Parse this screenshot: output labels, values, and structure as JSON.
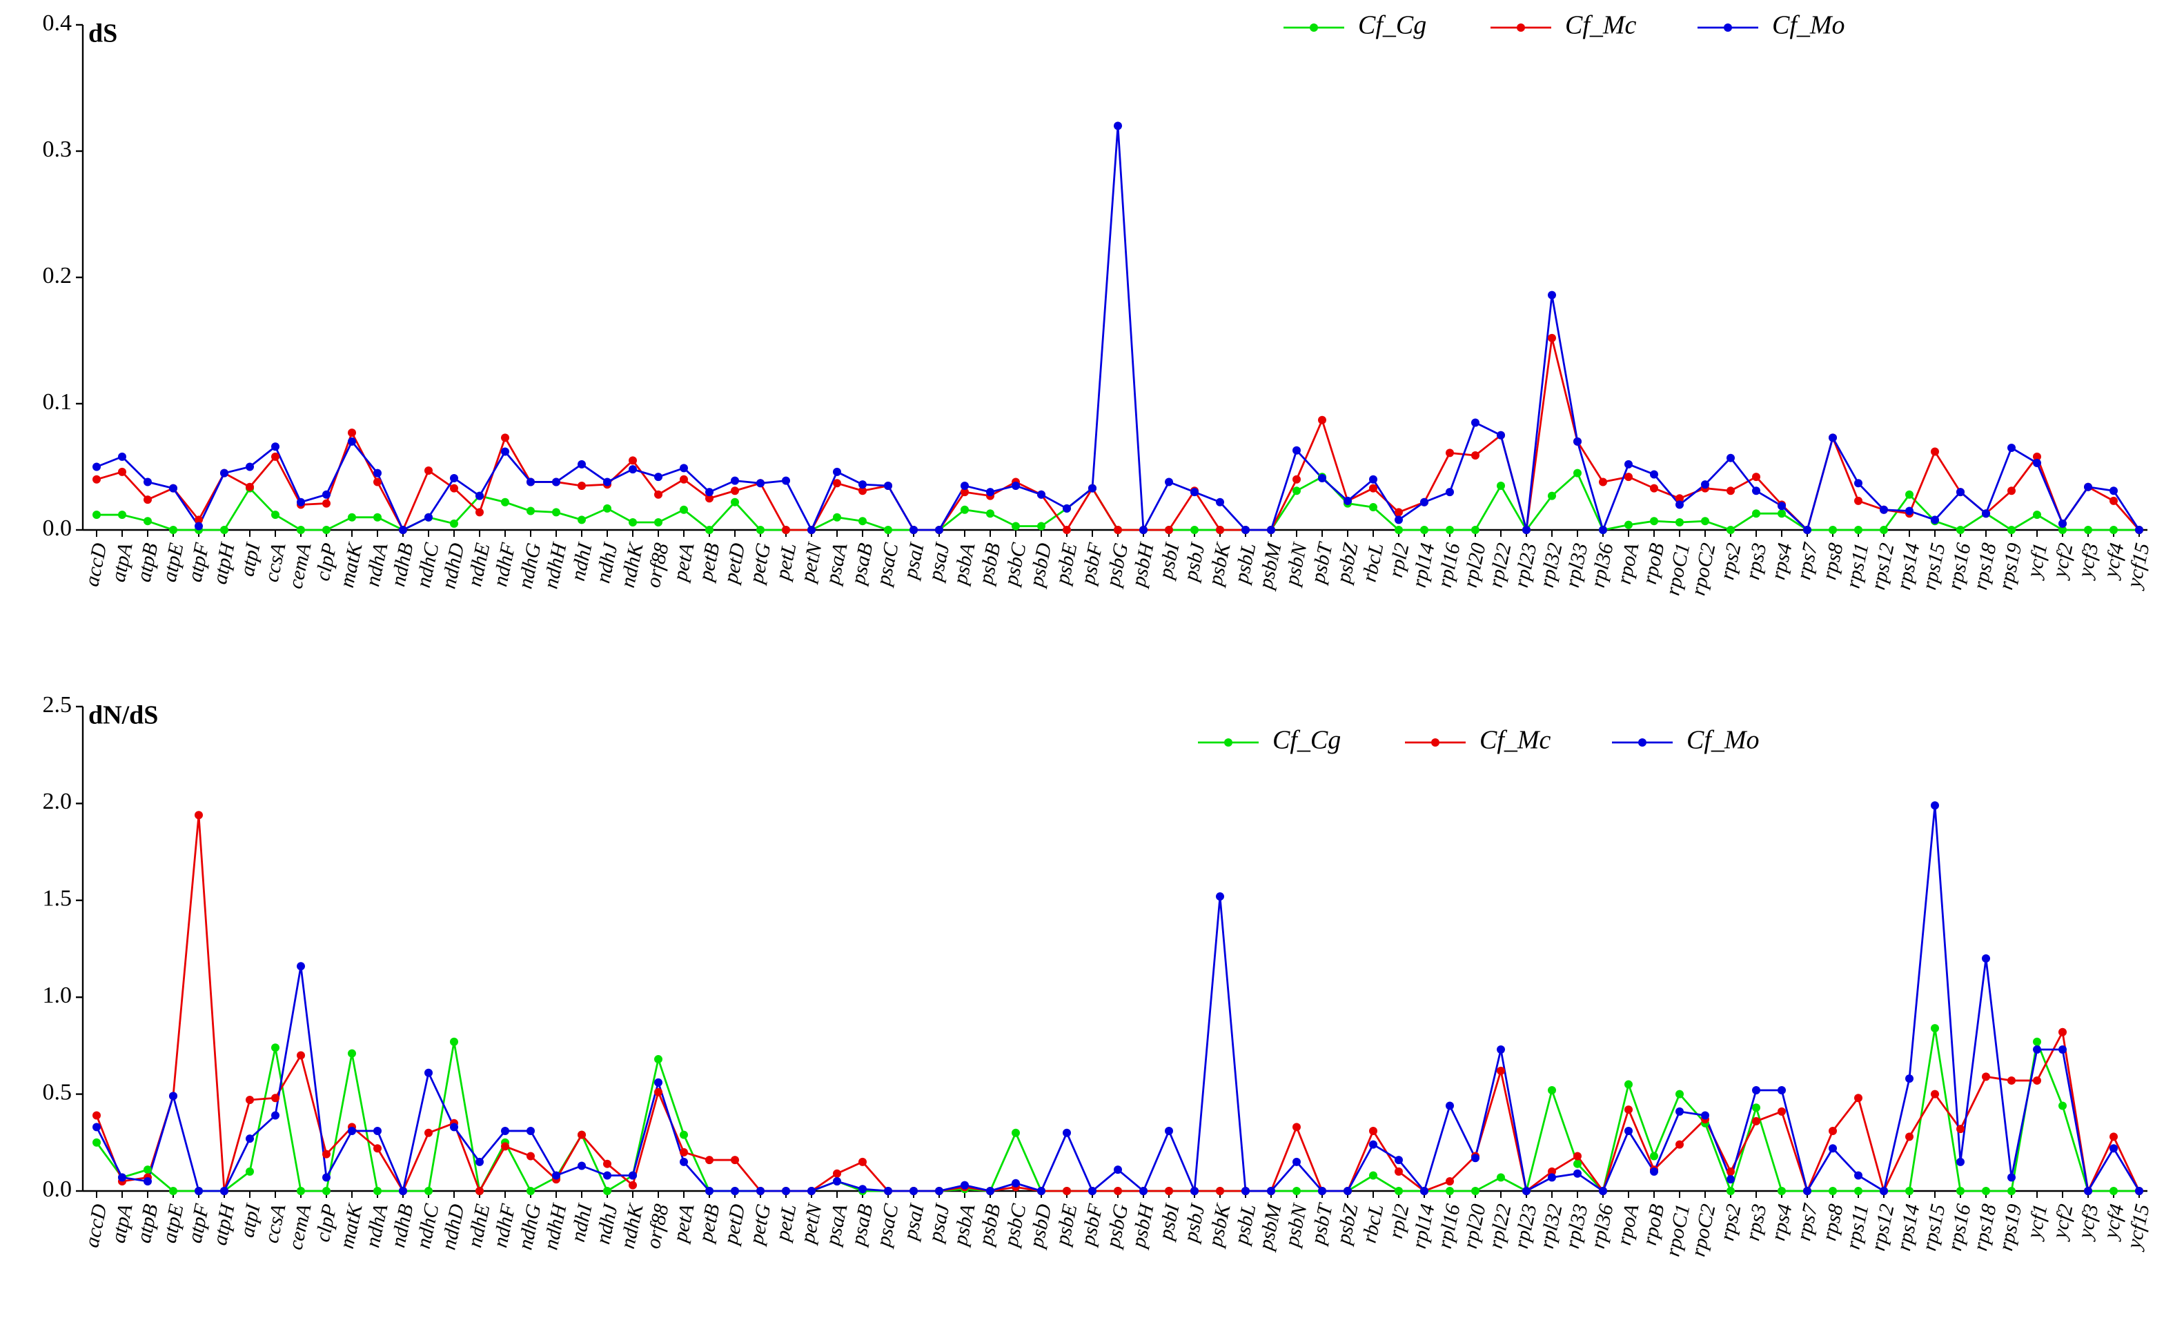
{
  "chart_data": [
    {
      "type": "line",
      "title": "dS",
      "categories": [
        "accD",
        "atpA",
        "atpB",
        "atpE",
        "atpF",
        "atpH",
        "atpI",
        "ccsA",
        "cemA",
        "clpP",
        "matK",
        "ndhA",
        "ndhB",
        "ndhC",
        "ndhD",
        "ndhE",
        "ndhF",
        "ndhG",
        "ndhH",
        "ndhI",
        "ndhJ",
        "ndhK",
        "orf88",
        "petA",
        "petB",
        "petD",
        "petG",
        "petL",
        "petN",
        "psaA",
        "psaB",
        "psaC",
        "psaI",
        "psaJ",
        "psbA",
        "psbB",
        "psbC",
        "psbD",
        "psbE",
        "psbF",
        "psbG",
        "psbH",
        "psbI",
        "psbJ",
        "psbK",
        "psbL",
        "psbM",
        "psbN",
        "psbT",
        "psbZ",
        "rbcL",
        "rpl2",
        "rpl14",
        "rpl16",
        "rpl20",
        "rpl22",
        "rpl23",
        "rpl32",
        "rpl33",
        "rpl36",
        "rpoA",
        "rpoB",
        "rpoC1",
        "rpoC2",
        "rps2",
        "rps3",
        "rps4",
        "rps7",
        "rps8",
        "rps11",
        "rps12",
        "rps14",
        "rps15",
        "rps16",
        "rps18",
        "rps19",
        "ycf1",
        "ycf2",
        "ycf3",
        "ycf4",
        "ycf15"
      ],
      "series": [
        {
          "name": "Cf_Cg",
          "color": "#00e000",
          "values": [
            0.012,
            0.012,
            0.007,
            0,
            0,
            0,
            0.033,
            0.012,
            0,
            0,
            0.01,
            0.01,
            0,
            0.01,
            0.005,
            0.027,
            0.022,
            0.015,
            0.014,
            0.008,
            0.017,
            0.006,
            0.006,
            0.016,
            0,
            0.022,
            0,
            0,
            0,
            0.01,
            0.007,
            0,
            0,
            0,
            0.016,
            0.013,
            0.003,
            0.003,
            0.017,
            0.033,
            0,
            0,
            0,
            0,
            0,
            0,
            0,
            0.031,
            0.042,
            0.021,
            0.018,
            0,
            0,
            0,
            0,
            0.035,
            0,
            0.027,
            0.045,
            0,
            0.004,
            0.007,
            0.006,
            0.007,
            0,
            0.013,
            0.013,
            0,
            0,
            0,
            0,
            0.028,
            0.007,
            0,
            0.013,
            0,
            0.012,
            0,
            0,
            0,
            0
          ]
        },
        {
          "name": "Cf_Mc",
          "color": "#e80000",
          "values": [
            0.04,
            0.046,
            0.024,
            0.033,
            0.008,
            0.045,
            0.034,
            0.058,
            0.02,
            0.021,
            0.077,
            0.038,
            0,
            0.047,
            0.033,
            0.014,
            0.073,
            0.038,
            0.038,
            0.035,
            0.036,
            0.055,
            0.028,
            0.04,
            0.025,
            0.031,
            0.037,
            0,
            0,
            0.037,
            0.031,
            0.035,
            0,
            0,
            0.03,
            0.027,
            0.038,
            0.028,
            0,
            0.033,
            0,
            0,
            0,
            0.031,
            0,
            0,
            0,
            0.04,
            0.087,
            0.023,
            0.033,
            0.014,
            0.022,
            0.061,
            0.059,
            0.075,
            0,
            0.152,
            0.07,
            0.038,
            0.042,
            0.033,
            0.025,
            0.033,
            0.031,
            0.042,
            0.02,
            0,
            0.073,
            0.023,
            0.016,
            0.013,
            0.062,
            0.03,
            0.013,
            0.031,
            0.058,
            0.005,
            0.034,
            0.023,
            0
          ]
        },
        {
          "name": "Cf_Mo",
          "color": "#0000e0",
          "values": [
            0.05,
            0.058,
            0.038,
            0.033,
            0.003,
            0.045,
            0.05,
            0.066,
            0.022,
            0.028,
            0.07,
            0.045,
            0,
            0.01,
            0.041,
            0.027,
            0.062,
            0.038,
            0.038,
            0.052,
            0.038,
            0.048,
            0.042,
            0.049,
            0.03,
            0.039,
            0.037,
            0.039,
            0,
            0.046,
            0.036,
            0.035,
            0,
            0,
            0.035,
            0.03,
            0.035,
            0.028,
            0.017,
            0.033,
            0.32,
            0,
            0.038,
            0.03,
            0.022,
            0,
            0,
            0.063,
            0.041,
            0.023,
            0.04,
            0.008,
            0.022,
            0.03,
            0.085,
            0.075,
            0,
            0.186,
            0.07,
            0,
            0.052,
            0.044,
            0.02,
            0.036,
            0.057,
            0.031,
            0.019,
            0,
            0.073,
            0.037,
            0.016,
            0.015,
            0.008,
            0.03,
            0.013,
            0.065,
            0.053,
            0.005,
            0.034,
            0.031,
            0
          ]
        }
      ],
      "ylim": [
        0,
        0.4
      ],
      "yticks": [
        {
          "value": 0,
          "label": "0.0"
        },
        0.1,
        0.2,
        0.3,
        0.4
      ],
      "legend": "top-right"
    },
    {
      "type": "line",
      "title": "dN/dS",
      "categories": [
        "accD",
        "atpA",
        "atpB",
        "atpE",
        "atpF",
        "atpH",
        "atpI",
        "ccsA",
        "cemA",
        "clpP",
        "matK",
        "ndhA",
        "ndhB",
        "ndhC",
        "ndhD",
        "ndhE",
        "ndhF",
        "ndhG",
        "ndhH",
        "ndhI",
        "ndhJ",
        "ndhK",
        "orf88",
        "petA",
        "petB",
        "petD",
        "petG",
        "petL",
        "petN",
        "psaA",
        "psaB",
        "psaC",
        "psaI",
        "psaJ",
        "psbA",
        "psbB",
        "psbC",
        "psbD",
        "psbE",
        "psbF",
        "psbG",
        "psbH",
        "psbI",
        "psbJ",
        "psbK",
        "psbL",
        "psbM",
        "psbN",
        "psbT",
        "psbZ",
        "rbcL",
        "rpl2",
        "rpl14",
        "rpl16",
        "rpl20",
        "rpl22",
        "rpl23",
        "rpl32",
        "rpl33",
        "rpl36",
        "rpoA",
        "rpoB",
        "rpoC1",
        "rpoC2",
        "rps2",
        "rps3",
        "rps4",
        "rps7",
        "rps8",
        "rps11",
        "rps12",
        "rps14",
        "rps15",
        "rps16",
        "rps18",
        "rps19",
        "ycf1",
        "ycf2",
        "ycf3",
        "ycf4",
        "ycf15"
      ],
      "series": [
        {
          "name": "Cf_Cg",
          "color": "#00e000",
          "values": [
            0.25,
            0.07,
            0.11,
            0,
            0,
            0,
            0.1,
            0.74,
            0,
            0,
            0.71,
            0,
            0,
            0,
            0.77,
            0,
            0.25,
            0,
            0.07,
            0.29,
            0,
            0.08,
            0.68,
            0.29,
            0,
            0,
            0,
            0,
            0,
            0.05,
            0,
            0,
            0,
            0,
            0.01,
            0,
            0.3,
            0,
            0,
            0,
            0,
            0,
            0,
            0,
            0,
            0,
            0,
            0,
            0,
            0,
            0.08,
            0,
            0,
            0,
            0,
            0.07,
            0,
            0.52,
            0.14,
            0,
            0.55,
            0.18,
            0.5,
            0.35,
            0,
            0.43,
            0,
            0,
            0,
            0,
            0,
            0,
            0.84,
            0,
            0,
            0,
            0.77,
            0.44,
            0,
            0,
            0
          ]
        },
        {
          "name": "Cf_Mc",
          "color": "#e80000",
          "values": [
            0.39,
            0.05,
            0.07,
            0.49,
            1.94,
            0,
            0.47,
            0.48,
            0.7,
            0.19,
            0.33,
            0.22,
            0,
            0.3,
            0.35,
            0,
            0.23,
            0.18,
            0.06,
            0.29,
            0.14,
            0.03,
            0.51,
            0.2,
            0.16,
            0.16,
            0,
            0,
            0,
            0.09,
            0.15,
            0,
            0,
            0,
            0.02,
            0,
            0.02,
            0,
            0,
            0,
            0,
            0,
            0,
            0,
            0,
            0,
            0,
            0.33,
            0,
            0,
            0.31,
            0.1,
            0,
            0.05,
            0.18,
            0.62,
            0,
            0.1,
            0.18,
            0,
            0.42,
            0.11,
            0.24,
            0.37,
            0.1,
            0.36,
            0.41,
            0,
            0.31,
            0.48,
            0,
            0.28,
            0.5,
            0.32,
            0.59,
            0.57,
            0.57,
            0.82,
            0,
            0.28,
            0
          ]
        },
        {
          "name": "Cf_Mo",
          "color": "#0000e0",
          "values": [
            0.33,
            0.07,
            0.05,
            0.49,
            0,
            0,
            0.27,
            0.39,
            1.16,
            0.07,
            0.31,
            0.31,
            0,
            0.61,
            0.33,
            0.15,
            0.31,
            0.31,
            0.08,
            0.13,
            0.08,
            0.08,
            0.56,
            0.15,
            0,
            0,
            0,
            0,
            0,
            0.05,
            0.01,
            0,
            0,
            0,
            0.03,
            0,
            0.04,
            0,
            0.3,
            0,
            0.11,
            0,
            0.31,
            0,
            1.52,
            0,
            0,
            0.15,
            0,
            0,
            0.24,
            0.16,
            0,
            0.44,
            0.17,
            0.73,
            0,
            0.07,
            0.09,
            0,
            0.31,
            0.1,
            0.41,
            0.39,
            0.06,
            0.52,
            0.52,
            0,
            0.22,
            0.08,
            0,
            0.58,
            1.99,
            0.15,
            1.2,
            0.07,
            0.73,
            0.73,
            0,
            0.22,
            0
          ]
        }
      ],
      "ylim": [
        0,
        2.5
      ],
      "yticks": [
        {
          "value": 0,
          "label": "0.0"
        },
        0.5,
        {
          "value": 1,
          "label": "1.0"
        },
        1.5,
        {
          "value": 2,
          "label": "2.0"
        },
        2.5
      ],
      "legend": "top-right"
    }
  ]
}
